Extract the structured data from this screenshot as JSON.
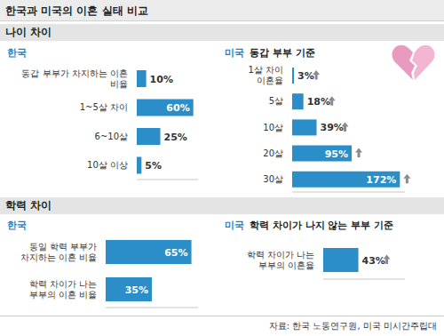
{
  "title": "한국과 미국의 이혼 실태 비교",
  "sections": [
    "나이 차이",
    "학력 차이"
  ],
  "source": "자료: 한국 노동연구원, 미국 미시간주립대",
  "chart_data": [
    {
      "type": "bar",
      "orientation": "horizontal",
      "title": "한국",
      "categories": [
        "동갑 부부가 차지하는 이혼 비율",
        "1~5살 차이",
        "6~10살",
        "10살 이상"
      ],
      "values": [
        10,
        60,
        25,
        5
      ],
      "value_labels": [
        "10%",
        "60%",
        "25%",
        "5%"
      ],
      "color": "#2b8ec8",
      "xlim": [
        0,
        65
      ],
      "data_labels": true,
      "tick_labels": "y"
    },
    {
      "type": "bar",
      "orientation": "horizontal",
      "title": "미국",
      "subtitle": "동갑 부부 기준",
      "categories": [
        "1살 차이 이혼율",
        "5살",
        "10살",
        "20살",
        "30살"
      ],
      "values": [
        3,
        18,
        39,
        95,
        172
      ],
      "value_labels": [
        "3%",
        "18%",
        "39%",
        "95%",
        "172%"
      ],
      "color": "#2b8ec8",
      "xlim": [
        0,
        180
      ],
      "data_labels": true,
      "tick_labels": "y",
      "marker": "up_arrow"
    },
    {
      "type": "bar",
      "orientation": "horizontal",
      "title": "한국",
      "categories": [
        "동일 학력 부부가 차지하는 이혼 비율",
        "학력 차이가 나는 부부의 이혼 비율"
      ],
      "values": [
        65,
        35
      ],
      "value_labels": [
        "65%",
        "35%"
      ],
      "color": "#2b8ec8",
      "xlim": [
        0,
        70
      ],
      "data_labels": true,
      "tick_labels": "y"
    },
    {
      "type": "bar",
      "orientation": "horizontal",
      "title": "미국",
      "subtitle": "학력 차이가 나지 않는 부부 기준",
      "categories": [
        "학력 차이가 나는 부부의 이혼율"
      ],
      "values": [
        43
      ],
      "value_labels": [
        "43%"
      ],
      "color": "#2b8ec8",
      "xlim": [
        0,
        100
      ],
      "data_labels": true,
      "tick_labels": "y",
      "marker": "up_arrow"
    }
  ]
}
